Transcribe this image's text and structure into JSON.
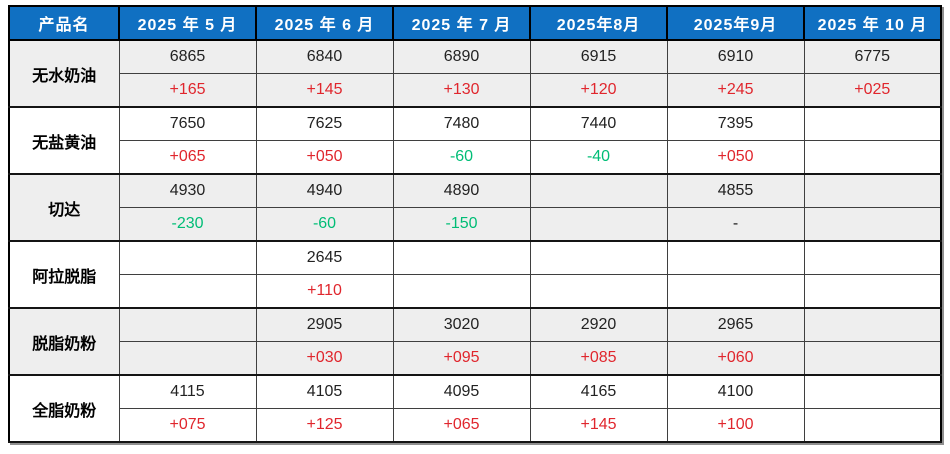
{
  "colors": {
    "header_bg": "#1070c2",
    "positive_change": "#e0262d",
    "negative_change": "#00bd76",
    "neutral_change": "#1a1a1a",
    "group_shade": "#eeeeee",
    "border_dark": "#000000"
  },
  "chart_data": {
    "type": "table",
    "title": "",
    "product_header": "产品名",
    "months": [
      "2025 年 5 月",
      "2025 年 6 月",
      "2025 年 7 月",
      "2025年8月",
      "2025年9月",
      "2025 年 10 月"
    ],
    "products": [
      {
        "name": "无水奶油",
        "prices": [
          "6865",
          "6840",
          "6890",
          "6915",
          "6910",
          "6775"
        ],
        "changes": [
          {
            "text": "+165",
            "dir": "up"
          },
          {
            "text": "+145",
            "dir": "up"
          },
          {
            "text": "+130",
            "dir": "up"
          },
          {
            "text": "+120",
            "dir": "up"
          },
          {
            "text": "+245",
            "dir": "up"
          },
          {
            "text": "+025",
            "dir": "up"
          }
        ]
      },
      {
        "name": "无盐黄油",
        "prices": [
          "7650",
          "7625",
          "7480",
          "7440",
          "7395",
          ""
        ],
        "changes": [
          {
            "text": "+065",
            "dir": "up"
          },
          {
            "text": "+050",
            "dir": "up"
          },
          {
            "text": "-60",
            "dir": "down"
          },
          {
            "text": "-40",
            "dir": "down"
          },
          {
            "text": "+050",
            "dir": "up"
          },
          {
            "text": "",
            "dir": "none"
          }
        ]
      },
      {
        "name": "切达",
        "prices": [
          "4930",
          "4940",
          "4890",
          "",
          "4855",
          ""
        ],
        "changes": [
          {
            "text": "-230",
            "dir": "down"
          },
          {
            "text": "-60",
            "dir": "down"
          },
          {
            "text": "-150",
            "dir": "down"
          },
          {
            "text": "",
            "dir": "none"
          },
          {
            "text": "-",
            "dir": "flat"
          },
          {
            "text": "",
            "dir": "none"
          }
        ]
      },
      {
        "name": "阿拉脱脂",
        "prices": [
          "",
          "2645",
          "",
          "",
          "",
          ""
        ],
        "changes": [
          {
            "text": "",
            "dir": "none"
          },
          {
            "text": "+110",
            "dir": "up"
          },
          {
            "text": "",
            "dir": "none"
          },
          {
            "text": "",
            "dir": "none"
          },
          {
            "text": "",
            "dir": "none"
          },
          {
            "text": "",
            "dir": "none"
          }
        ]
      },
      {
        "name": "脱脂奶粉",
        "prices": [
          "",
          "2905",
          "3020",
          "2920",
          "2965",
          ""
        ],
        "changes": [
          {
            "text": "",
            "dir": "none"
          },
          {
            "text": "+030",
            "dir": "up"
          },
          {
            "text": "+095",
            "dir": "up"
          },
          {
            "text": "+085",
            "dir": "up"
          },
          {
            "text": "+060",
            "dir": "up"
          },
          {
            "text": "",
            "dir": "none"
          }
        ]
      },
      {
        "name": "全脂奶粉",
        "prices": [
          "4115",
          "4105",
          "4095",
          "4165",
          "4100",
          ""
        ],
        "changes": [
          {
            "text": "+075",
            "dir": "up"
          },
          {
            "text": "+125",
            "dir": "up"
          },
          {
            "text": "+065",
            "dir": "up"
          },
          {
            "text": "+145",
            "dir": "up"
          },
          {
            "text": "+100",
            "dir": "up"
          },
          {
            "text": "",
            "dir": "none"
          }
        ]
      }
    ]
  }
}
